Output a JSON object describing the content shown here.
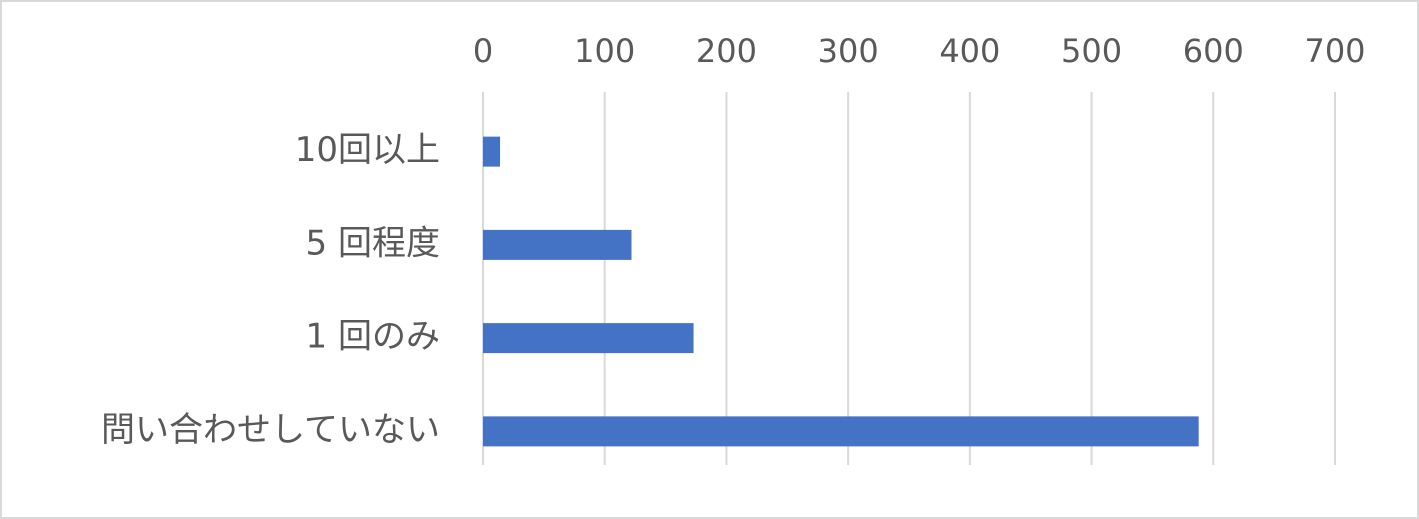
{
  "chart_data": {
    "type": "bar",
    "orientation": "horizontal",
    "categories": [
      "10回以上",
      "5 回程度",
      "1 回のみ",
      "問い合わせしていない"
    ],
    "values": [
      14,
      122,
      173,
      588
    ],
    "color": "#4472c4",
    "xlim": [
      0,
      700
    ],
    "xticks": [
      0,
      100,
      200,
      300,
      400,
      500,
      600,
      700
    ],
    "grid": true
  }
}
